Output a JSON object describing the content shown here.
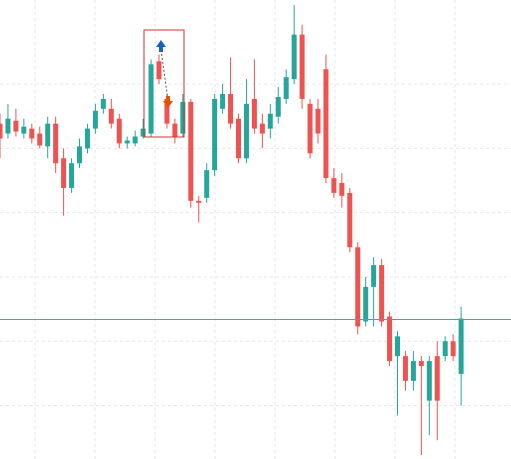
{
  "chart_data": {
    "type": "candlestick",
    "open": [
      334,
      324,
      337,
      324,
      329,
      324,
      311,
      334,
      299,
      269,
      294,
      309,
      329,
      349,
      349,
      339,
      314,
      314,
      321,
      324,
      397,
      359,
      334,
      324,
      356,
      256,
      259,
      287,
      349,
      364,
      339,
      299,
      359,
      334,
      329,
      341,
      359,
      379,
      424,
      354,
      349,
      389,
      279,
      274,
      264,
      209,
      134,
      169,
      191,
      139,
      99,
      99,
      74,
      94,
      54,
      99,
      99,
      114,
      81
    ],
    "close": [
      319,
      339,
      326,
      331,
      319,
      312,
      334,
      294,
      269,
      294,
      311,
      329,
      347,
      359,
      334,
      314,
      317,
      321,
      329,
      394,
      379,
      334,
      321,
      356,
      256,
      254,
      287,
      359,
      364,
      334,
      299,
      354,
      329,
      324,
      344,
      361,
      381,
      424,
      359,
      304,
      324,
      279,
      264,
      261,
      209,
      129,
      169,
      191,
      134,
      94,
      119,
      74,
      94,
      89,
      94,
      54,
      114,
      99,
      137
    ],
    "high": [
      344,
      354,
      349,
      339,
      334,
      331,
      341,
      341,
      309,
      299,
      319,
      334,
      354,
      364,
      359,
      344,
      321,
      327,
      339,
      399,
      404,
      364,
      339,
      364,
      359,
      261,
      294,
      364,
      374,
      401,
      344,
      379,
      399,
      344,
      354,
      371,
      389,
      454,
      434,
      359,
      359,
      404,
      289,
      284,
      269,
      214,
      179,
      199,
      197,
      144,
      124,
      104,
      104,
      99,
      99,
      114,
      119,
      121,
      149
    ],
    "low": [
      299,
      319,
      321,
      319,
      314,
      309,
      299,
      284,
      241,
      264,
      289,
      304,
      324,
      344,
      329,
      309,
      309,
      311,
      319,
      321,
      374,
      329,
      314,
      321,
      249,
      234,
      254,
      281,
      344,
      329,
      294,
      294,
      324,
      309,
      319,
      334,
      354,
      374,
      349,
      299,
      314,
      274,
      259,
      249,
      204,
      121,
      129,
      129,
      129,
      89,
      39,
      64,
      64,
      -1,
      19,
      14,
      94,
      94,
      49
    ],
    "up_color": "#26a69a",
    "down_color": "#ef5350",
    "ylim": [
      -5,
      459
    ],
    "yticks": [
      374,
      309,
      244,
      179,
      114,
      49
    ],
    "grid": true,
    "hline": {
      "value": 136,
      "color": "#3aa8b8"
    }
  }
}
